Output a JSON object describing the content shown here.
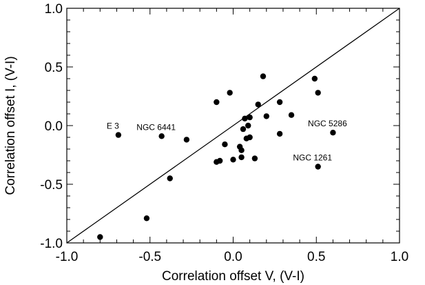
{
  "chart_data": {
    "type": "scatter",
    "title": "",
    "xlabel": "Correlation offset V, (V-I)",
    "ylabel": "Correlation offset I, (V-I)",
    "xlim": [
      -1.0,
      1.0
    ],
    "ylim": [
      -1.0,
      1.0
    ],
    "grid": false,
    "xticks": [
      "-1.0",
      "-0.5",
      "0.0",
      "0.5",
      "1.0"
    ],
    "yticks": [
      "-1.0",
      "-0.5",
      "0.0",
      "0.5",
      "1.0"
    ],
    "reference_line": {
      "label": "",
      "x": [
        -1.0,
        1.0
      ],
      "y": [
        -1.0,
        1.0
      ]
    },
    "points": [
      {
        "x": -0.8,
        "y": -0.95
      },
      {
        "x": -0.52,
        "y": -0.79
      },
      {
        "x": -0.38,
        "y": -0.45
      },
      {
        "x": -0.69,
        "y": -0.08
      },
      {
        "x": -0.43,
        "y": -0.09
      },
      {
        "x": -0.28,
        "y": -0.12
      },
      {
        "x": -0.1,
        "y": 0.2
      },
      {
        "x": -0.02,
        "y": 0.28
      },
      {
        "x": 0.18,
        "y": 0.42
      },
      {
        "x": 0.49,
        "y": 0.4
      },
      {
        "x": 0.51,
        "y": 0.28
      },
      {
        "x": 0.28,
        "y": 0.2
      },
      {
        "x": 0.15,
        "y": 0.18
      },
      {
        "x": 0.35,
        "y": 0.09
      },
      {
        "x": 0.2,
        "y": 0.08
      },
      {
        "x": 0.1,
        "y": 0.07
      },
      {
        "x": 0.07,
        "y": 0.06
      },
      {
        "x": 0.09,
        "y": 0.0
      },
      {
        "x": 0.06,
        "y": -0.03
      },
      {
        "x": 0.28,
        "y": -0.07
      },
      {
        "x": 0.6,
        "y": -0.06
      },
      {
        "x": 0.1,
        "y": -0.1
      },
      {
        "x": 0.08,
        "y": -0.11
      },
      {
        "x": -0.05,
        "y": -0.16
      },
      {
        "x": 0.04,
        "y": -0.18
      },
      {
        "x": 0.05,
        "y": -0.21
      },
      {
        "x": 0.05,
        "y": -0.27
      },
      {
        "x": 0.13,
        "y": -0.28
      },
      {
        "x": -0.08,
        "y": -0.3
      },
      {
        "x": -0.1,
        "y": -0.31
      },
      {
        "x": 0.0,
        "y": -0.29
      },
      {
        "x": 0.51,
        "y": -0.35
      }
    ],
    "annotations": [
      {
        "text": "E 3",
        "x": -0.69,
        "y": -0.08
      },
      {
        "text": "NGC 6441",
        "x": -0.43,
        "y": -0.09
      },
      {
        "text": "NGC 5286",
        "x": 0.6,
        "y": -0.06
      },
      {
        "text": "NGC 1261",
        "x": 0.51,
        "y": -0.35
      }
    ]
  }
}
